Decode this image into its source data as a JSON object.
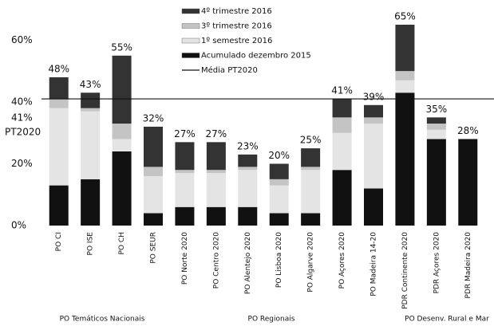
{
  "chart_data": {
    "type": "bar",
    "stacked": true,
    "categories": [
      "PO CI",
      "PO ISE",
      "PO CH",
      "PO SEUR",
      "PO Norte 2020",
      "PO Centro 2020",
      "PO Alentejo 2020",
      "PO Lisboa 2020",
      "PO Algarve 2020",
      "PO Açores 2020",
      "PO Madeira 14-20",
      "PDR Continente 2020",
      "PDR Açores 2020",
      "PDR Madeira 2020"
    ],
    "series": [
      {
        "name": "Acumulado dezembro 2015",
        "color": "#111111",
        "values": [
          13,
          15,
          24,
          4,
          6,
          6,
          6,
          4,
          4,
          18,
          12,
          43,
          28,
          28
        ]
      },
      {
        "name": "1º semestre 2016",
        "color": "#e4e4e4",
        "values": [
          25,
          22,
          4,
          12,
          11,
          11,
          12,
          9,
          14,
          12,
          21,
          4,
          3,
          0
        ]
      },
      {
        "name": "3º trimestre 2016",
        "color": "#c4c4c4",
        "values": [
          3,
          1,
          5,
          3,
          1,
          1,
          1,
          2,
          1,
          5,
          2,
          3,
          2,
          0
        ]
      },
      {
        "name": "4º trimestre 2016",
        "color": "#333333",
        "values": [
          7,
          5,
          22,
          13,
          9,
          9,
          4,
          5,
          6,
          6,
          4,
          15,
          2,
          0
        ]
      }
    ],
    "totals": [
      48,
      43,
      55,
      32,
      27,
      27,
      23,
      20,
      25,
      41,
      39,
      65,
      35,
      28
    ],
    "total_labels": [
      "48%",
      "43%",
      "55%",
      "32%",
      "27%",
      "27%",
      "23%",
      "20%",
      "25%",
      "41%",
      "39%",
      "65%",
      "35%",
      "28%"
    ],
    "reference": {
      "name": "Média PT2020",
      "value": 41,
      "label": "41%",
      "note": "PT2020"
    },
    "groups": [
      "PO Temáticos Nacionais",
      "PO Regionais",
      "PO Desenv. Rural e Mar"
    ],
    "ylim": [
      0,
      73
    ],
    "yticks": [
      {
        "value": 0,
        "label": "0%"
      },
      {
        "value": 20,
        "label": "20%"
      },
      {
        "value": 40,
        "label": "40%"
      },
      {
        "value": 60,
        "label": "60%"
      }
    ],
    "grid": false,
    "legend": "top"
  }
}
